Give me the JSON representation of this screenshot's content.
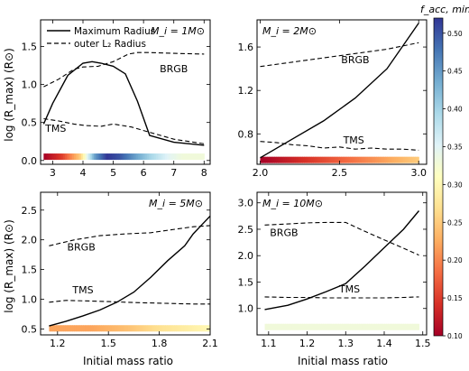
{
  "legend": {
    "solid_label": "Maximum Radius",
    "dashed_label": "outer L₂ Radius"
  },
  "shared_ylabel": "log (R_max) (R⊙)",
  "shared_xlabel": "Initial mass ratio",
  "colorbar": {
    "label": "f_acc, min",
    "min": 0.1,
    "max": 0.52,
    "ticks": [
      0.1,
      0.15,
      0.2,
      0.25,
      0.3,
      0.35,
      0.4,
      0.45,
      0.5
    ],
    "colormap": [
      "#a50026",
      "#d73027",
      "#f46d43",
      "#fdae61",
      "#fee090",
      "#ffffbf",
      "#e0f3f8",
      "#abd9e9",
      "#74add1",
      "#4575b4",
      "#313695"
    ]
  },
  "chart_data": [
    {
      "type": "line",
      "panel_label": "M_i = 1M⊙",
      "xlim": [
        2.6,
        8.2
      ],
      "ylim": [
        -0.05,
        1.85
      ],
      "xticks": [
        3,
        4,
        5,
        6,
        7,
        8
      ],
      "yticks": [
        0.0,
        0.5,
        1.0,
        1.5
      ],
      "text_labels": [
        {
          "text": "BRGB",
          "x": 7.0,
          "y": 1.16
        },
        {
          "text": "TMS",
          "x": 3.1,
          "y": 0.38
        }
      ],
      "series": [
        {
          "name": "Maximum Radius",
          "style": "solid",
          "x": [
            2.7,
            3.0,
            3.5,
            4.0,
            4.3,
            4.6,
            5.0,
            5.4,
            5.8,
            6.2,
            7.0,
            8.0
          ],
          "y": [
            0.48,
            0.75,
            1.12,
            1.28,
            1.3,
            1.28,
            1.24,
            1.14,
            0.78,
            0.33,
            0.24,
            0.2
          ]
        },
        {
          "name": "outer L₂ Radius",
          "style": "dashed",
          "x": [
            2.7,
            3.2,
            3.7,
            4.0,
            4.5,
            5.0,
            5.5,
            5.8,
            6.2,
            7.0,
            8.0
          ],
          "y": [
            0.97,
            1.07,
            1.2,
            1.23,
            1.24,
            1.3,
            1.4,
            1.42,
            1.42,
            1.41,
            1.4
          ]
        },
        {
          "name": "",
          "style": "dashed",
          "x": [
            2.7,
            3.2,
            3.7,
            4.1,
            4.6,
            5.0,
            5.6,
            6.3,
            7.0,
            8.0
          ],
          "y": [
            0.55,
            0.52,
            0.48,
            0.46,
            0.45,
            0.48,
            0.44,
            0.36,
            0.28,
            0.22
          ]
        }
      ],
      "facc_strip": {
        "x": [
          2.7,
          3.3,
          3.9,
          4.4,
          4.8,
          5.2,
          5.7,
          6.2,
          6.8,
          7.3,
          8.0
        ],
        "value": [
          0.1,
          0.15,
          0.25,
          0.45,
          0.52,
          0.5,
          0.45,
          0.4,
          0.35,
          0.33,
          0.33
        ],
        "y": 0.05
      }
    },
    {
      "type": "line",
      "panel_label": "M_i = 2M⊙",
      "xlim": [
        1.98,
        3.05
      ],
      "ylim": [
        0.52,
        1.85
      ],
      "xticks": [
        2.0,
        2.5,
        3.0
      ],
      "yticks": [
        0.8,
        1.2,
        1.6
      ],
      "text_labels": [
        {
          "text": "BRGB",
          "x": 2.6,
          "y": 1.45
        },
        {
          "text": "TMS",
          "x": 2.59,
          "y": 0.71
        }
      ],
      "series": [
        {
          "name": "Maximum Radius",
          "style": "solid",
          "x": [
            2.0,
            2.2,
            2.4,
            2.6,
            2.8,
            3.0
          ],
          "y": [
            0.58,
            0.75,
            0.92,
            1.13,
            1.4,
            1.82
          ]
        },
        {
          "name": "outer L₂ Radius",
          "style": "dashed",
          "x": [
            2.0,
            2.2,
            2.4,
            2.6,
            2.8,
            3.0
          ],
          "y": [
            1.42,
            1.46,
            1.5,
            1.54,
            1.58,
            1.64
          ]
        },
        {
          "name": "",
          "style": "dashed",
          "x": [
            2.0,
            2.1,
            2.2,
            2.3,
            2.4,
            2.5,
            2.6,
            2.7,
            2.8,
            2.9,
            3.0
          ],
          "y": [
            0.73,
            0.72,
            0.7,
            0.69,
            0.67,
            0.68,
            0.66,
            0.67,
            0.66,
            0.66,
            0.65
          ]
        }
      ],
      "facc_strip": {
        "x": [
          2.0,
          2.2,
          2.4,
          2.6,
          2.8,
          3.0
        ],
        "value": [
          0.1,
          0.13,
          0.16,
          0.19,
          0.22,
          0.25
        ],
        "y": 0.56
      }
    },
    {
      "type": "line",
      "panel_label": "M_i = 5M⊙",
      "xlim": [
        1.1,
        2.1
      ],
      "ylim": [
        0.4,
        2.8
      ],
      "xticks": [
        1.2,
        1.5,
        1.8,
        2.1
      ],
      "yticks": [
        0.5,
        1.0,
        1.5,
        2.0,
        2.5
      ],
      "text_labels": [
        {
          "text": "BRGB",
          "x": 1.34,
          "y": 1.82
        },
        {
          "text": "TMS",
          "x": 1.35,
          "y": 1.1
        }
      ],
      "series": [
        {
          "name": "Maximum Radius",
          "style": "solid",
          "x": [
            1.15,
            1.25,
            1.35,
            1.45,
            1.55,
            1.65,
            1.75,
            1.85,
            1.95,
            2.0,
            2.05,
            2.1
          ],
          "y": [
            0.55,
            0.63,
            0.72,
            0.82,
            0.95,
            1.12,
            1.37,
            1.65,
            1.9,
            2.1,
            2.25,
            2.4
          ]
        },
        {
          "name": "outer L₂ Radius",
          "style": "dashed",
          "x": [
            1.15,
            1.3,
            1.45,
            1.6,
            1.75,
            1.9,
            2.0,
            2.1
          ],
          "y": [
            1.9,
            2.0,
            2.07,
            2.1,
            2.12,
            2.18,
            2.22,
            2.24
          ]
        },
        {
          "name": "",
          "style": "dashed",
          "x": [
            1.15,
            1.25,
            1.4,
            1.5,
            1.6,
            1.7,
            1.85,
            2.0,
            2.1
          ],
          "y": [
            0.95,
            0.98,
            0.97,
            0.96,
            0.95,
            0.94,
            0.93,
            0.92,
            0.92
          ]
        }
      ],
      "facc_strip": {
        "x": [
          1.15,
          1.4,
          1.6,
          1.8,
          2.1
        ],
        "value": [
          0.22,
          0.22,
          0.24,
          0.27,
          0.3
        ],
        "y": 0.51
      }
    },
    {
      "type": "line",
      "panel_label": "M_i = 10M⊙",
      "xlim": [
        1.07,
        1.51
      ],
      "ylim": [
        0.5,
        3.2
      ],
      "xticks": [
        1.1,
        1.2,
        1.3,
        1.4,
        1.5
      ],
      "yticks": [
        1.0,
        1.5,
        2.0,
        2.5,
        3.0
      ],
      "text_labels": [
        {
          "text": "BRGB",
          "x": 1.14,
          "y": 2.37
        },
        {
          "text": "TMS",
          "x": 1.31,
          "y": 1.3
        }
      ],
      "series": [
        {
          "name": "Maximum Radius",
          "style": "solid",
          "x": [
            1.09,
            1.15,
            1.2,
            1.25,
            1.3,
            1.35,
            1.4,
            1.45,
            1.49
          ],
          "y": [
            0.98,
            1.06,
            1.18,
            1.32,
            1.47,
            1.8,
            2.15,
            2.5,
            2.85
          ]
        },
        {
          "name": "outer L₂ Radius",
          "style": "dashed",
          "x": [
            1.09,
            1.15,
            1.2,
            1.25,
            1.3,
            1.35,
            1.4,
            1.45,
            1.49
          ],
          "y": [
            2.58,
            2.6,
            2.62,
            2.63,
            2.63,
            2.46,
            2.3,
            2.14,
            2.01
          ]
        },
        {
          "name": "",
          "style": "dashed",
          "x": [
            1.09,
            1.15,
            1.2,
            1.25,
            1.3,
            1.35,
            1.4,
            1.45,
            1.49
          ],
          "y": [
            1.22,
            1.21,
            1.21,
            1.2,
            1.2,
            1.2,
            1.2,
            1.21,
            1.22
          ]
        }
      ],
      "facc_strip": {
        "x": [
          1.09,
          1.49
        ],
        "value": [
          0.33,
          0.33
        ],
        "y": 0.65
      }
    }
  ]
}
